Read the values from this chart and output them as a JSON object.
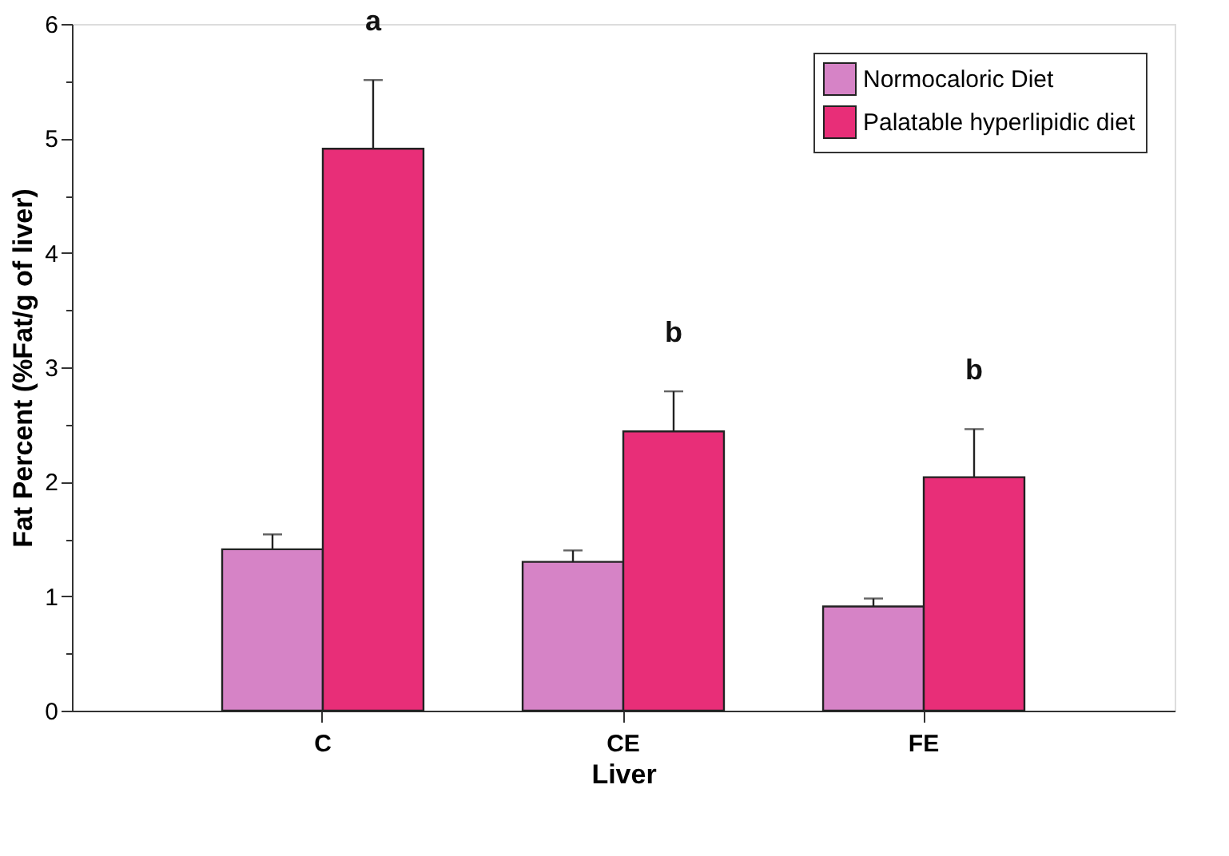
{
  "chart_data": {
    "type": "bar",
    "xlabel": "Liver",
    "ylabel": "Fat Percent (%Fat/g of liver)",
    "categories": [
      "C",
      "CE",
      "FE"
    ],
    "series": [
      {
        "name": "Normocaloric Diet",
        "color": "#d683c6",
        "values": [
          1.41,
          1.3,
          0.91
        ],
        "errors": [
          [
            1.41,
            1.54
          ],
          [
            1.3,
            1.4
          ],
          [
            0.91,
            0.98
          ]
        ]
      },
      {
        "name": "Palatable hyperlipidic diet",
        "color": "#e82e78",
        "values": [
          4.91,
          2.44,
          2.04
        ],
        "errors": [
          [
            4.91,
            5.51
          ],
          [
            2.44,
            2.79
          ],
          [
            2.04,
            2.46
          ]
        ]
      }
    ],
    "ylim": [
      0,
      6
    ],
    "yticks": [
      0,
      {
        "value": 0.5,
        "label": null
      },
      1,
      {
        "value": 1.5,
        "label": null
      },
      2,
      {
        "value": 2.5,
        "label": null
      },
      3,
      {
        "value": 3.5,
        "label": null
      },
      4,
      {
        "value": 4.5,
        "label": null
      },
      5,
      {
        "value": 5.5,
        "label": null
      },
      6
    ],
    "annotations": [
      "a",
      "b",
      "b"
    ],
    "legend": "top right",
    "grid": false
  }
}
